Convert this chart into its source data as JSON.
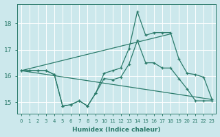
{
  "xlabel": "Humidex (Indice chaleur)",
  "bg_color": "#cce8ec",
  "grid_color": "#ffffff",
  "line_color": "#2a7a6a",
  "xlim": [
    -0.5,
    23.5
  ],
  "ylim": [
    14.55,
    18.75
  ],
  "yticks": [
    15,
    16,
    17,
    18
  ],
  "xticks": [
    0,
    1,
    2,
    3,
    4,
    5,
    6,
    7,
    8,
    9,
    10,
    11,
    12,
    13,
    14,
    15,
    16,
    17,
    18,
    19,
    20,
    21,
    22,
    23
  ],
  "diag_up": {
    "x": [
      0,
      18
    ],
    "y": [
      16.2,
      17.6
    ]
  },
  "diag_down": {
    "x": [
      0,
      23
    ],
    "y": [
      16.2,
      15.1
    ]
  },
  "zigzag1_x": [
    0,
    1,
    2,
    3,
    4,
    5,
    6,
    7,
    8,
    9,
    10,
    11,
    12,
    13,
    14,
    15,
    16,
    17,
    18,
    19,
    20,
    21,
    22,
    23
  ],
  "zigzag1_y": [
    16.2,
    16.2,
    16.2,
    16.2,
    16.05,
    14.85,
    14.9,
    15.05,
    14.85,
    15.35,
    16.1,
    16.2,
    16.3,
    17.05,
    18.45,
    17.55,
    17.65,
    17.65,
    17.65,
    16.65,
    16.1,
    16.05,
    15.95,
    15.1
  ],
  "zigzag2_x": [
    0,
    1,
    2,
    3,
    4,
    5,
    6,
    7,
    8,
    9,
    10,
    11,
    12,
    13,
    14,
    15,
    16,
    17,
    18,
    19,
    20,
    21,
    22,
    23
  ],
  "zigzag2_y": [
    16.2,
    16.2,
    16.2,
    16.2,
    16.05,
    14.85,
    14.9,
    15.05,
    14.85,
    15.35,
    15.9,
    15.85,
    15.95,
    16.45,
    17.35,
    16.5,
    16.5,
    16.3,
    16.3,
    15.9,
    15.5,
    15.05,
    15.05,
    15.05
  ]
}
